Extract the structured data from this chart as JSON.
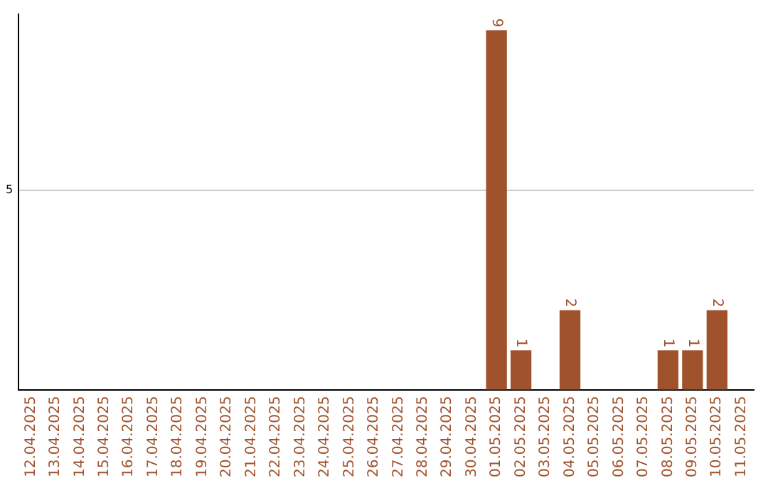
{
  "chart_data": {
    "type": "bar",
    "categories": [
      "12.04.2025",
      "13.04.2025",
      "14.04.2025",
      "15.04.2025",
      "16.04.2025",
      "17.04.2025",
      "18.04.2025",
      "19.04.2025",
      "20.04.2025",
      "21.04.2025",
      "22.04.2025",
      "23.04.2025",
      "24.04.2025",
      "25.04.2025",
      "26.04.2025",
      "27.04.2025",
      "28.04.2025",
      "29.04.2025",
      "30.04.2025",
      "01.05.2025",
      "02.05.2025",
      "03.05.2025",
      "04.05.2025",
      "05.05.2025",
      "06.05.2025",
      "07.05.2025",
      "08.05.2025",
      "09.05.2025",
      "10.05.2025",
      "11.05.2025"
    ],
    "values": [
      null,
      null,
      null,
      null,
      null,
      null,
      null,
      null,
      null,
      null,
      null,
      null,
      null,
      null,
      null,
      null,
      null,
      null,
      null,
      9,
      1,
      null,
      2,
      null,
      null,
      null,
      1,
      1,
      2,
      null
    ],
    "color": "#a0522d",
    "ylim": [
      0,
      9.4
    ],
    "yticks": [
      {
        "value": 0,
        "label": null
      },
      5
    ],
    "grid": "y",
    "legend": false,
    "data_labels": true
  }
}
